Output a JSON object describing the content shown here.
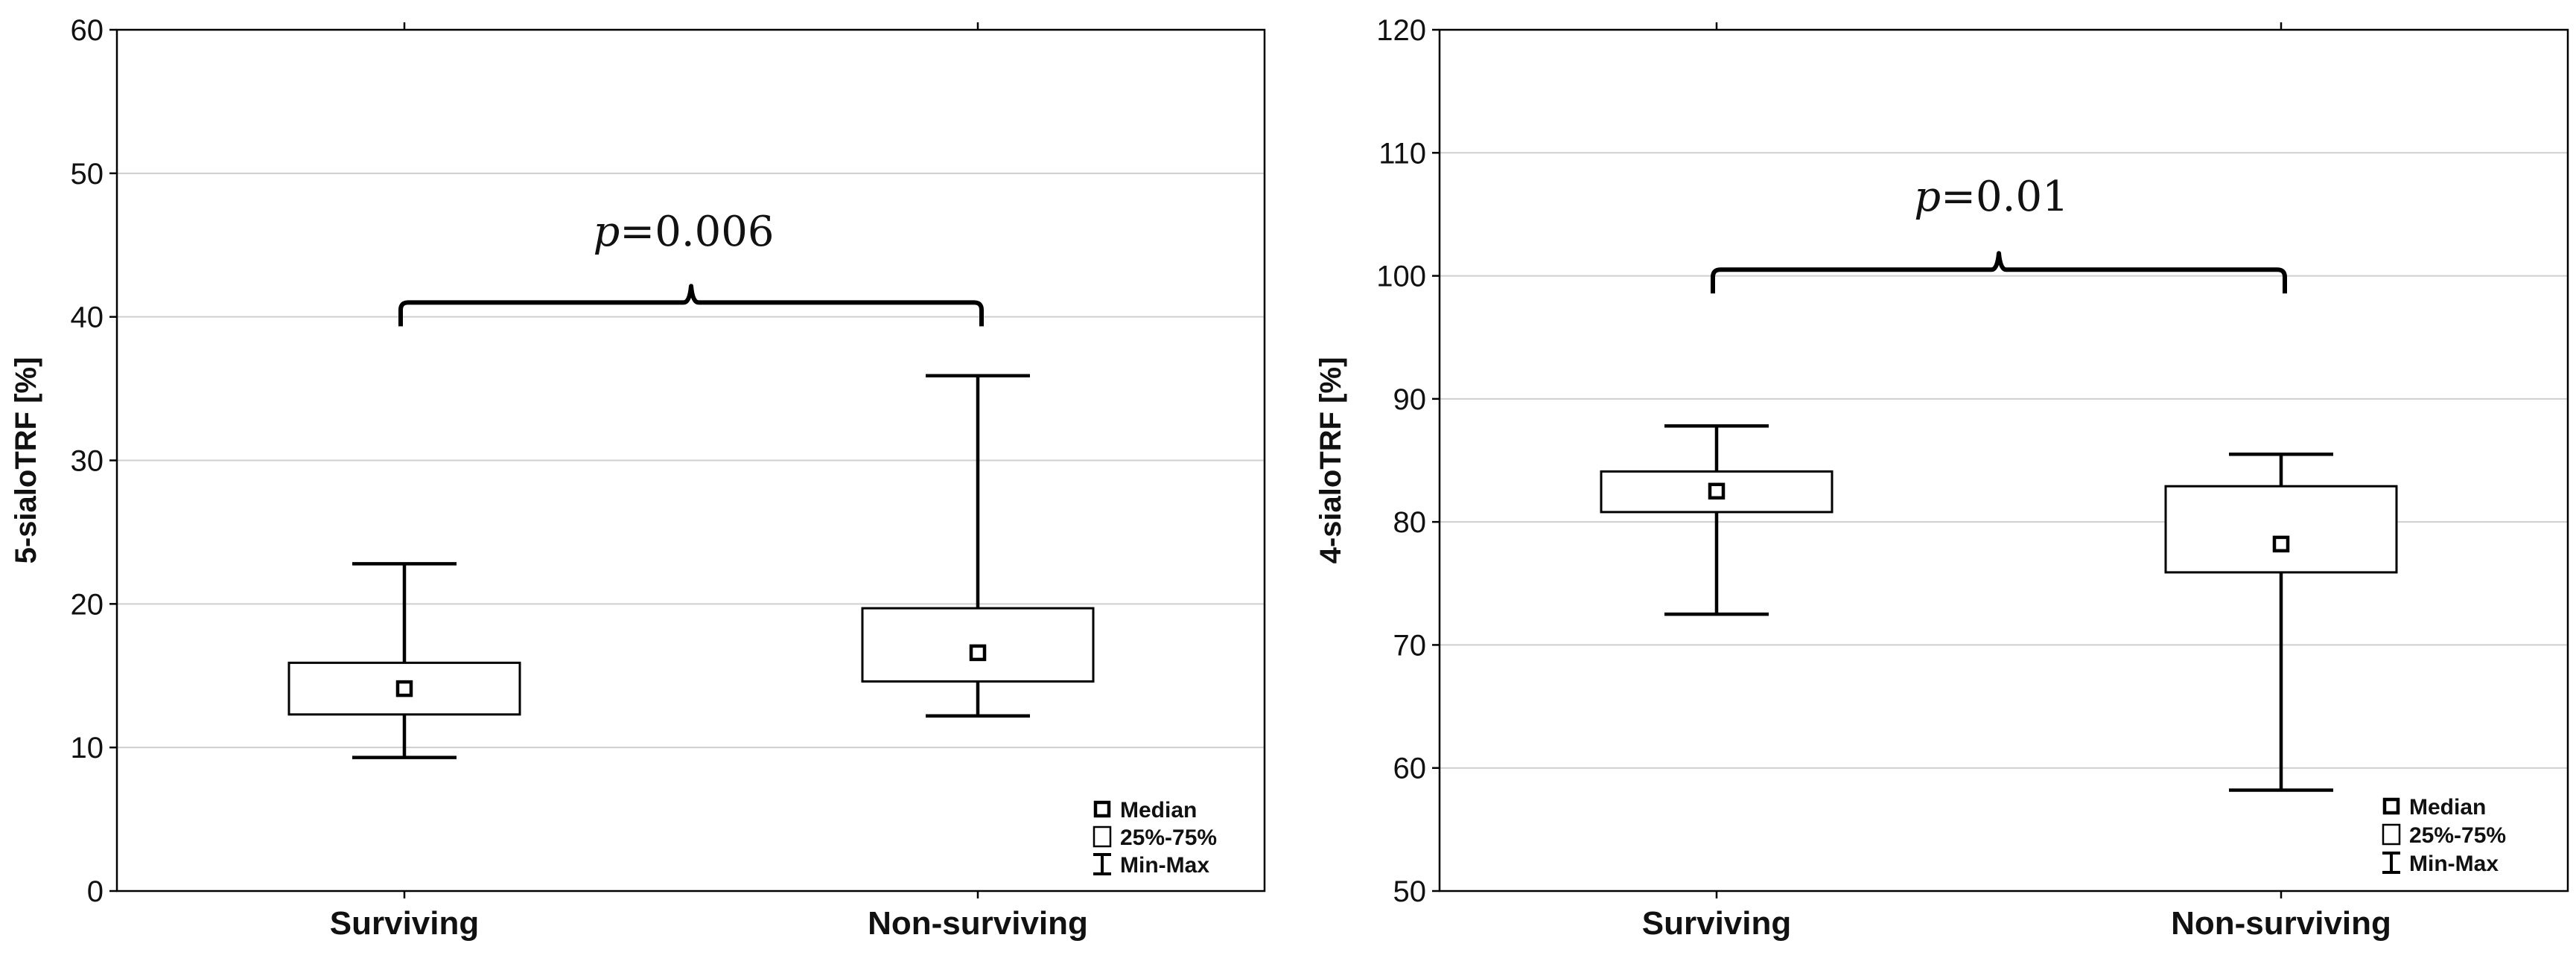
{
  "chart_data": [
    {
      "type": "boxplot",
      "ylabel": "5-sialoTRF [%]",
      "ylim": [
        0,
        60
      ],
      "yticks": [
        0,
        10,
        20,
        30,
        40,
        50,
        60
      ],
      "grid": true,
      "categories": [
        "Surviving",
        "Non-surviving"
      ],
      "boxes": [
        {
          "category": "Surviving",
          "min": 9.3,
          "q1": 12.3,
          "median": 14.1,
          "q3": 15.9,
          "max": 22.8
        },
        {
          "category": "Non-surviving",
          "min": 12.2,
          "q1": 14.6,
          "median": 16.6,
          "q3": 19.7,
          "max": 35.9
        }
      ],
      "annotation": {
        "p_symbol": "p",
        "p_value": "=0.006",
        "bracket_y": 41,
        "text_y": 46
      },
      "legend": {
        "position": "bottom-right",
        "entries": [
          "Median",
          "25%-75%",
          "Min-Max"
        ]
      }
    },
    {
      "type": "boxplot",
      "ylabel": "4-sialoTRF [%]",
      "ylim": [
        50,
        120
      ],
      "yticks": [
        50,
        60,
        70,
        80,
        90,
        100,
        110,
        120
      ],
      "grid": true,
      "categories": [
        "Surviving",
        "Non-surviving"
      ],
      "boxes": [
        {
          "category": "Surviving",
          "min": 72.5,
          "q1": 80.8,
          "median": 82.5,
          "q3": 84.1,
          "max": 87.8
        },
        {
          "category": "Non-surviving",
          "min": 58.2,
          "q1": 75.9,
          "median": 78.2,
          "q3": 82.9,
          "max": 85.5
        }
      ],
      "annotation": {
        "p_symbol": "p",
        "p_value": "=0.01",
        "bracket_y": 100.5,
        "text_y": 106.5
      },
      "legend": {
        "position": "bottom-right",
        "entries": [
          "Median",
          "25%-75%",
          "Min-Max"
        ]
      }
    }
  ]
}
